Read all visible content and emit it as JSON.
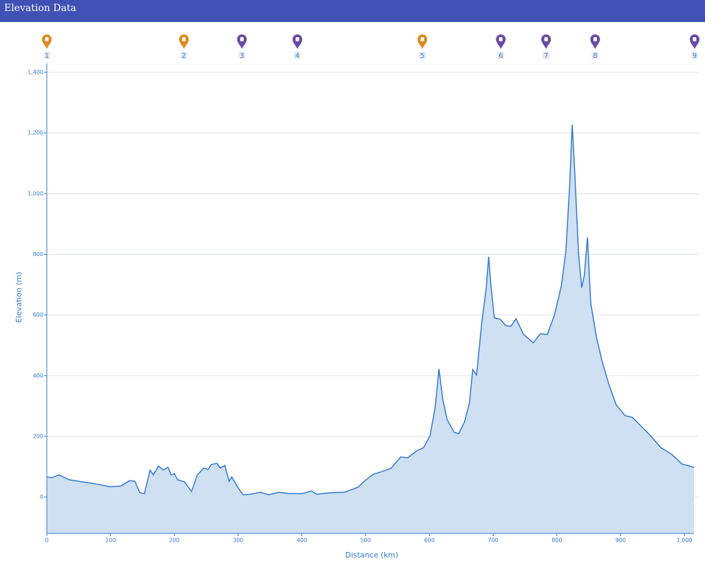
{
  "header": {
    "title": "Elevation Data"
  },
  "chart_data": {
    "type": "area",
    "x_label": "Distance (km)",
    "y_label": "Elevation (m)",
    "color": "#2f78d0",
    "fill_color": "#cfe0f3",
    "grid": true,
    "xlim": [
      0,
      1015
    ],
    "ylim": [
      -120,
      1400
    ],
    "xticks": [
      0,
      100,
      200,
      300,
      400,
      500,
      600,
      700,
      800,
      900,
      {
        "value": 1000,
        "label": "1,000"
      }
    ],
    "yticks": [
      0,
      200,
      400,
      600,
      800,
      {
        "value": 1000,
        "label": "1,000"
      },
      {
        "value": 1200,
        "label": "1,200"
      },
      {
        "value": 1400,
        "label": "1,400"
      }
    ],
    "markers": [
      {
        "label": "1",
        "x": 0,
        "color": "#e08a1e"
      },
      {
        "label": "2",
        "x": 215,
        "color": "#e08a1e"
      },
      {
        "label": "3",
        "x": 306,
        "color": "#6a4aa8"
      },
      {
        "label": "4",
        "x": 393,
        "color": "#6a4aa8"
      },
      {
        "label": "5",
        "x": 589,
        "color": "#e08a1e"
      },
      {
        "label": "6",
        "x": 712,
        "color": "#6a4aa8"
      },
      {
        "label": "7",
        "x": 783,
        "color": "#6a4aa8"
      },
      {
        "label": "8",
        "x": 860,
        "color": "#6a4aa8"
      },
      {
        "label": "9",
        "x": 1016,
        "color": "#6a4aa8"
      }
    ],
    "x": [
      0,
      8,
      19,
      35,
      56,
      78,
      99,
      116,
      130,
      138,
      146,
      153,
      162,
      167,
      175,
      183,
      190,
      195,
      200,
      205,
      216,
      227,
      236,
      246,
      253,
      258,
      267,
      272,
      279,
      286,
      290,
      299,
      308,
      319,
      335,
      348,
      364,
      380,
      400,
      415,
      423,
      445,
      467,
      488,
      499,
      512,
      526,
      540,
      555,
      566,
      580,
      591,
      601,
      609,
      615,
      621,
      628,
      639,
      646,
      655,
      663,
      668,
      674,
      682,
      689,
      693,
      697,
      702,
      711,
      720,
      728,
      736,
      747,
      763,
      774,
      785,
      796,
      807,
      814,
      820,
      824,
      828,
      834,
      839,
      843,
      848,
      853,
      862,
      871,
      882,
      893,
      907,
      918,
      931,
      947,
      963,
      980,
      996,
      1015
    ],
    "values": [
      66,
      64,
      73,
      57,
      50,
      43,
      34,
      36,
      54,
      52,
      14,
      11,
      89,
      73,
      102,
      89,
      98,
      73,
      77,
      57,
      50,
      18,
      73,
      95,
      91,
      107,
      111,
      95,
      104,
      52,
      66,
      34,
      7,
      9,
      16,
      7,
      16,
      11,
      11,
      20,
      9,
      14,
      16,
      32,
      54,
      75,
      84,
      95,
      132,
      129,
      152,
      163,
      202,
      295,
      422,
      322,
      254,
      213,
      209,
      247,
      311,
      420,
      402,
      572,
      686,
      792,
      686,
      590,
      586,
      565,
      563,
      588,
      538,
      508,
      538,
      536,
      599,
      697,
      810,
      1026,
      1228,
      1072,
      799,
      690,
      731,
      856,
      640,
      527,
      447,
      368,
      304,
      268,
      263,
      236,
      202,
      163,
      141,
      109,
      98
    ]
  }
}
